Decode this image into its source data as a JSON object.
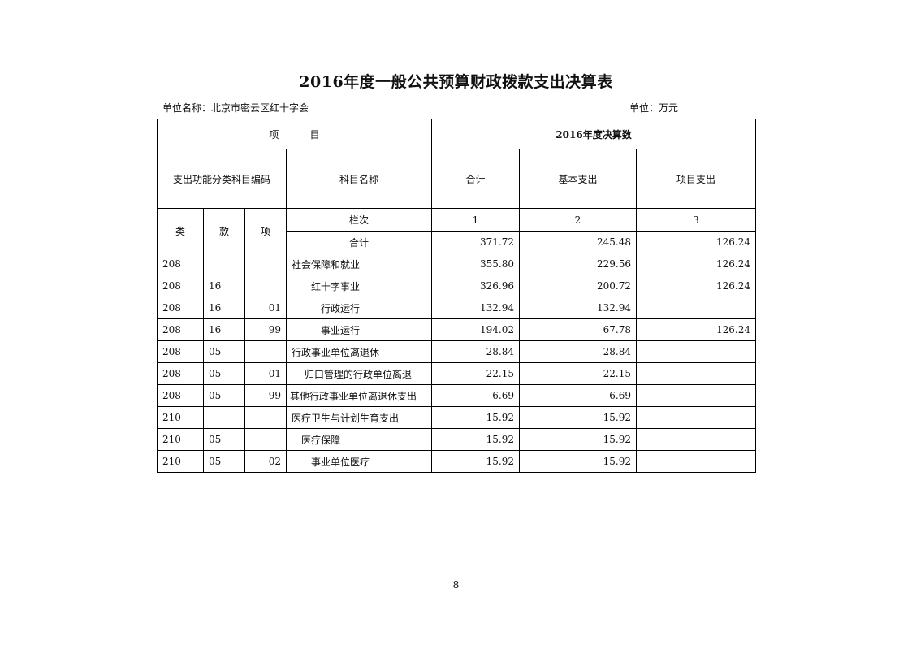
{
  "title": "2016年度一般公共预算财政拨款支出决算表",
  "unit_name": "单位名称：北京市密云区红十字会",
  "unit": "单位：万元",
  "header": {
    "project": "项          目",
    "year_total": "2016年度决算数",
    "code": "支出功能分类科目编码",
    "subject_name": "科目名称",
    "total": "合计",
    "basic": "基本支出",
    "project_exp": "项目支出",
    "lei": "类",
    "kuan": "款",
    "xiang": "项",
    "column_no": "栏次",
    "col1": "1",
    "col2": "2",
    "col3": "3",
    "sum_label": "合计",
    "sum_total": "371.72",
    "sum_basic": "245.48",
    "sum_project": "126.24"
  },
  "rows": [
    {
      "lei": "208",
      "kuan": "",
      "xiang": "",
      "name": "社会保障和就业",
      "total": "355.80",
      "basic": "229.56",
      "project": "126.24"
    },
    {
      "lei": "208",
      "kuan": "16",
      "xiang": "",
      "name": "红十字事业",
      "total": "326.96",
      "basic": "200.72",
      "project": "126.24"
    },
    {
      "lei": "208",
      "kuan": "16",
      "xiang": "01",
      "name": "行政运行",
      "total": "132.94",
      "basic": "132.94",
      "project": ""
    },
    {
      "lei": "208",
      "kuan": "16",
      "xiang": "99",
      "name": "事业运行",
      "total": "194.02",
      "basic": "67.78",
      "project": "126.24"
    },
    {
      "lei": "208",
      "kuan": "05",
      "xiang": "",
      "name": "行政事业单位离退休",
      "total": "28.84",
      "basic": "28.84",
      "project": ""
    },
    {
      "lei": "208",
      "kuan": "05",
      "xiang": "01",
      "name": "归口管理的行政单位离退",
      "total": "22.15",
      "basic": "22.15",
      "project": ""
    },
    {
      "lei": "208",
      "kuan": "05",
      "xiang": "99",
      "name": "其他行政事业单位离退休支出",
      "total": "6.69",
      "basic": "6.69",
      "project": ""
    },
    {
      "lei": "210",
      "kuan": "",
      "xiang": "",
      "name": "医疗卫生与计划生育支出",
      "total": "15.92",
      "basic": "15.92",
      "project": ""
    },
    {
      "lei": "210",
      "kuan": "05",
      "xiang": "",
      "name": "医疗保障",
      "total": "15.92",
      "basic": "15.92",
      "project": ""
    },
    {
      "lei": "210",
      "kuan": "05",
      "xiang": "02",
      "name": "事业单位医疗",
      "total": "15.92",
      "basic": "15.92",
      "project": ""
    }
  ],
  "page_number": "8"
}
